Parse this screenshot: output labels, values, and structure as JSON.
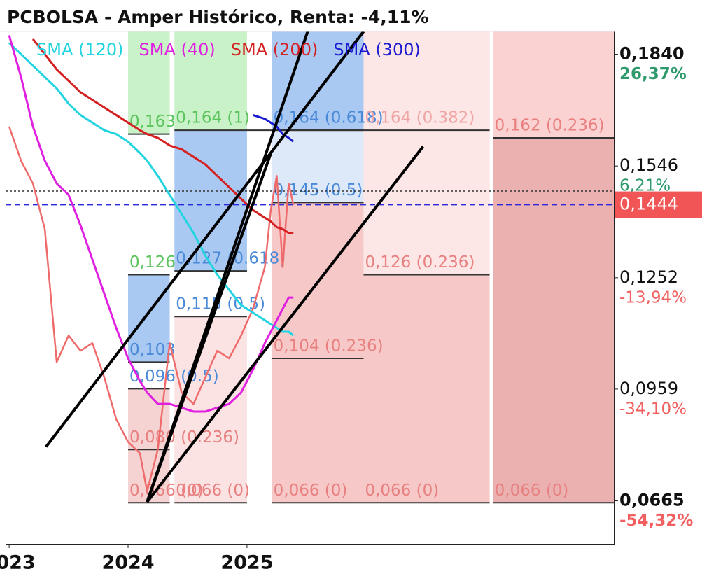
{
  "chart_data": {
    "type": "line",
    "title": "PCBOLSA - Amper Histórico, Renta: -4,11%",
    "xlim": [
      2022.97,
      2028.09
    ],
    "xticks": [
      2023,
      2024,
      2025
    ],
    "ylim": [
      0.055,
      0.19
    ],
    "yticks": [
      {
        "value": 0.184,
        "label": "0,1840"
      },
      {
        "value": 0.1546,
        "label": "0,1546"
      },
      {
        "value": 0.1252,
        "label": "0,1252"
      },
      {
        "value": 0.0959,
        "label": "0,0959"
      },
      {
        "value": 0.0665,
        "label": "0,0665"
      }
    ],
    "ytick_changes": [
      {
        "value": 26.37,
        "label": "26,37%"
      },
      {
        "value": 6.21,
        "label": "6,21%"
      },
      {
        "value": -13.94,
        "label": "-13,94%"
      },
      {
        "value": -34.1,
        "label": "-34,10%"
      },
      {
        "value": -54.32,
        "label": "-54,32%"
      }
    ],
    "last_price": {
      "value": 0.1444,
      "label": "0,1444",
      "color": "#f25555"
    },
    "reference_line": {
      "value": 0.148,
      "color": "#333333"
    },
    "x": [
      2023.0,
      2023.1,
      2023.2,
      2023.3,
      2023.4,
      2023.5,
      2023.6,
      2023.7,
      2023.8,
      2023.9,
      2024.0,
      2024.1,
      2024.16,
      2024.25,
      2024.35,
      2024.45,
      2024.55,
      2024.65,
      2024.75,
      2024.85,
      2024.95,
      2025.05,
      2025.15,
      2025.2,
      2025.25,
      2025.3,
      2025.35,
      2025.39
    ],
    "price": {
      "color": "#ef6b6b",
      "values": [
        0.165,
        0.156,
        0.15,
        0.138,
        0.103,
        0.11,
        0.106,
        0.108,
        0.099,
        0.088,
        0.082,
        0.079,
        0.069,
        0.08,
        0.108,
        0.095,
        0.092,
        0.099,
        0.106,
        0.104,
        0.11,
        0.117,
        0.128,
        0.143,
        0.152,
        0.128,
        0.15,
        0.1444
      ]
    },
    "series": [
      {
        "name": "SMA (120)",
        "color": "#22d3e0",
        "values": [
          0.187,
          0.184,
          0.181,
          0.178,
          0.175,
          0.171,
          0.168,
          0.166,
          0.164,
          0.163,
          0.161,
          0.158,
          0.156,
          0.152,
          0.147,
          0.142,
          0.137,
          0.131,
          0.126,
          0.122,
          0.118,
          0.116,
          0.114,
          0.113,
          0.112,
          0.111,
          0.111,
          0.11
        ]
      },
      {
        "name": "SMA (40)",
        "color": "#e020e0",
        "values": [
          0.189,
          0.178,
          0.165,
          0.156,
          0.15,
          0.147,
          0.139,
          0.13,
          0.121,
          0.112,
          0.104,
          0.098,
          0.095,
          0.092,
          0.092,
          0.091,
          0.09,
          0.09,
          0.091,
          0.092,
          0.095,
          0.101,
          0.108,
          0.111,
          0.114,
          0.117,
          0.12,
          0.12
        ]
      },
      {
        "name": "SMA (200)",
        "color": "#d42020",
        "values": [
          null,
          null,
          0.188,
          0.184,
          0.18,
          0.177,
          0.174,
          0.172,
          0.17,
          0.168,
          0.166,
          0.164,
          0.163,
          0.162,
          0.16,
          0.159,
          0.157,
          0.155,
          0.152,
          0.149,
          0.146,
          0.143,
          0.141,
          0.14,
          0.1385,
          0.138,
          0.137,
          0.137
        ]
      },
      {
        "name": "SMA (300)",
        "color": "#1a1ad0",
        "values": [
          null,
          null,
          null,
          null,
          null,
          null,
          null,
          null,
          null,
          null,
          null,
          null,
          null,
          null,
          null,
          null,
          null,
          null,
          null,
          null,
          null,
          0.168,
          0.167,
          0.166,
          0.165,
          0.163,
          0.162,
          0.161
        ]
      }
    ],
    "zones": [
      {
        "x": [
          2024.0,
          2024.35
        ],
        "y": [
          0.163,
          0.19
        ],
        "color": "#c9f2c9"
      },
      {
        "x": [
          2024.0,
          2024.35
        ],
        "y": [
          0.103,
          0.126
        ],
        "color": "#a9c8f2"
      },
      {
        "x": [
          2024.0,
          2024.35
        ],
        "y": [
          0.066,
          0.096
        ],
        "color": "#f6d3d3"
      },
      {
        "x": [
          2024.39,
          2025.0
        ],
        "y": [
          0.164,
          0.19
        ],
        "color": "#c9f2c9"
      },
      {
        "x": [
          2024.39,
          2025.0
        ],
        "y": [
          0.127,
          0.164
        ],
        "color": "#a9c8f2"
      },
      {
        "x": [
          2024.39,
          2025.0
        ],
        "y": [
          0.066,
          0.115
        ],
        "color": "#fbe3e3"
      },
      {
        "x": [
          2025.21,
          2025.98
        ],
        "y": [
          0.164,
          0.19
        ],
        "color": "#a9c8f2"
      },
      {
        "x": [
          2025.21,
          2025.98
        ],
        "y": [
          0.145,
          0.164
        ],
        "color": "#dde9f8"
      },
      {
        "x": [
          2025.21,
          2025.98
        ],
        "y": [
          0.066,
          0.145
        ],
        "color": "#f6c8c8"
      },
      {
        "x": [
          2025.98,
          2027.04
        ],
        "y": [
          0.126,
          0.19
        ],
        "color": "#fde6e6"
      },
      {
        "x": [
          2025.98,
          2027.04
        ],
        "y": [
          0.066,
          0.126
        ],
        "color": "#f6c8c8"
      },
      {
        "x": [
          2027.07,
          2028.09
        ],
        "y": [
          0.162,
          0.19
        ],
        "color": "#fbd2d2"
      },
      {
        "x": [
          2027.07,
          2028.09
        ],
        "y": [
          0.066,
          0.162
        ],
        "color": "#ebb1b1"
      }
    ],
    "fib_levels": [
      {
        "label": "0,163",
        "value": 0.163,
        "x": [
          2024.0,
          2024.35
        ],
        "color": "#5cc45c"
      },
      {
        "label": "0,164 (1)",
        "value": 0.164,
        "x": [
          2024.39,
          2025.98
        ],
        "color": "#5cc45c"
      },
      {
        "label": "0,164 (0.618)",
        "value": 0.164,
        "x": [
          2025.21,
          2025.98
        ],
        "color": "#4a8ad8"
      },
      {
        "label": "0,164 (0.382)",
        "value": 0.164,
        "x": [
          2025.98,
          2027.04
        ],
        "color": "#f0a5a5"
      },
      {
        "label": "0,162 (0.236)",
        "value": 0.162,
        "x": [
          2027.07,
          2028.09
        ],
        "color": "#e98080"
      },
      {
        "label": "0,145 (0.5)",
        "value": 0.145,
        "x": [
          2025.21,
          2025.98
        ],
        "color": "#4a8ad8"
      },
      {
        "label": "0,126",
        "value": 0.126,
        "x": [
          2024.0,
          2024.35
        ],
        "color": "#5cc45c"
      },
      {
        "label": "0,127 (0.618)",
        "value": 0.127,
        "x": [
          2024.39,
          2025.0
        ],
        "color": "#4a8ad8"
      },
      {
        "label": "0,126 (0.236)",
        "value": 0.126,
        "x": [
          2025.98,
          2027.04
        ],
        "color": "#e98080"
      },
      {
        "label": "0,115 (0.5)",
        "value": 0.115,
        "x": [
          2024.39,
          2025.0
        ],
        "color": "#4a8ad8"
      },
      {
        "label": "0,104 (0.236)",
        "value": 0.104,
        "x": [
          2025.21,
          2025.98
        ],
        "color": "#e98080"
      },
      {
        "label": "0,103",
        "value": 0.103,
        "x": [
          2024.0,
          2024.35
        ],
        "color": "#4a8ad8"
      },
      {
        "label": "0,096 (0.5)",
        "value": 0.096,
        "x": [
          2024.0,
          2024.35
        ],
        "color": "#4a8ad8"
      },
      {
        "label": "0,080 (0.236)",
        "value": 0.08,
        "x": [
          2024.0,
          2024.35
        ],
        "color": "#e98080"
      },
      {
        "label": "0,066 (0)",
        "value": 0.066,
        "x": [
          2024.0,
          2024.35
        ],
        "color": "#e98080"
      },
      {
        "label": "0,066 (0)",
        "value": 0.066,
        "x": [
          2024.39,
          2025.0
        ],
        "color": "#e98080"
      },
      {
        "label": "0,066 (0)",
        "value": 0.066,
        "x": [
          2025.21,
          2025.98
        ],
        "color": "#e98080"
      },
      {
        "label": "0,066 (0)",
        "value": 0.066,
        "x": [
          2025.98,
          2027.04
        ],
        "color": "#e98080"
      },
      {
        "label": "0,066 (0)",
        "value": 0.066,
        "x": [
          2027.07,
          2028.09
        ],
        "color": "#e98080"
      }
    ],
    "trendlines": [
      {
        "x": [
          2023.31,
          2025.98
        ],
        "y": [
          0.0807,
          0.19
        ]
      },
      {
        "x": [
          2024.16,
          2025.51
        ],
        "y": [
          0.0662,
          0.19
        ]
      },
      {
        "x": [
          2024.16,
          2026.48
        ],
        "y": [
          0.0662,
          0.1597
        ]
      },
      {
        "x": [
          2024.16,
          2025.2
        ],
        "y": [
          0.0662,
          0.1579
        ]
      }
    ]
  }
}
